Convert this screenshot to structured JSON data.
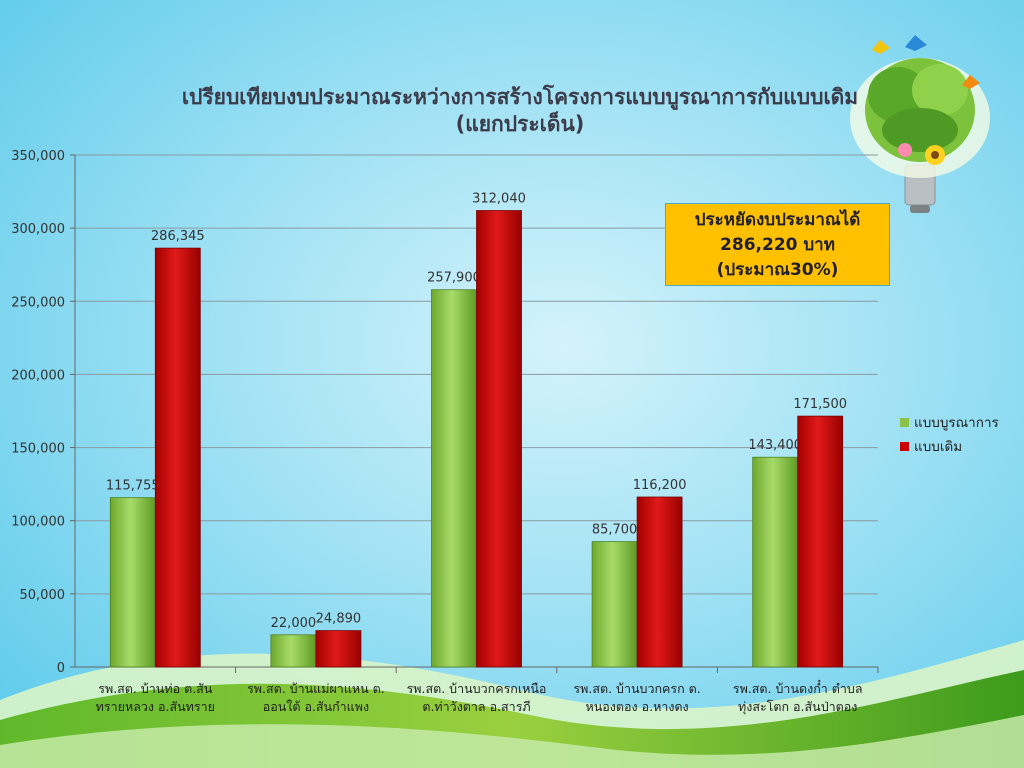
{
  "title": {
    "line1": "เปรียบเทียบงบประมาณระหว่างการสร้างโครงการแบบบูรณาการกับแบบเดิม",
    "line2": "(แยกประเด็น)"
  },
  "callout": {
    "line1": "ประหยัดงบประมาณได้",
    "line2": "286,220 บาท",
    "line3": "(ประมาณ30%)"
  },
  "colors": {
    "series1": "#8bc34a",
    "series2": "#cc0000",
    "callout_bg": "#ffc000"
  },
  "chart_data": {
    "type": "bar",
    "title": "เปรียบเทียบงบประมาณระหว่างการสร้างโครงการแบบบูรณาการกับแบบเดิม (แยกประเด็น)",
    "xlabel": "",
    "ylabel": "",
    "ylim": [
      0,
      350000
    ],
    "yticks": [
      "0",
      "50,000",
      "100,000",
      "150,000",
      "200,000",
      "250,000",
      "300,000",
      "350,000"
    ],
    "grid": true,
    "legend_position": "right",
    "categories": [
      [
        "รพ.สต. บ้านท่อ ต.สัน",
        "ทรายหลวง อ.สันทราย"
      ],
      [
        "รพ.สต. บ้านแม่ผาแหน ต.",
        "ออนใต้ อ.สันกำแพง"
      ],
      [
        "รพ.สต. บ้านบวกครกเหนือ",
        "ต.ท่าวังตาล อ.สารภี"
      ],
      [
        "รพ.สต. บ้านบวกครก ต.",
        "หนองตอง อ.หางดง"
      ],
      [
        "รพ.สต. บ้านดงก๋ำ ตำบล",
        "ทุ่งสะโตก อ.สันป่าตอง"
      ]
    ],
    "series": [
      {
        "name": "แบบบูรณาการ",
        "values": [
          115755,
          22000,
          257900,
          85700,
          143400
        ],
        "labels": [
          "115,755",
          "22,000",
          "257,900",
          "85,700",
          "143,400"
        ]
      },
      {
        "name": "แบบเดิม",
        "values": [
          286345,
          24890,
          312040,
          116200,
          171500
        ],
        "labels": [
          "286,345",
          "24,890",
          "312,040",
          "116,200",
          "171,500"
        ]
      }
    ]
  }
}
